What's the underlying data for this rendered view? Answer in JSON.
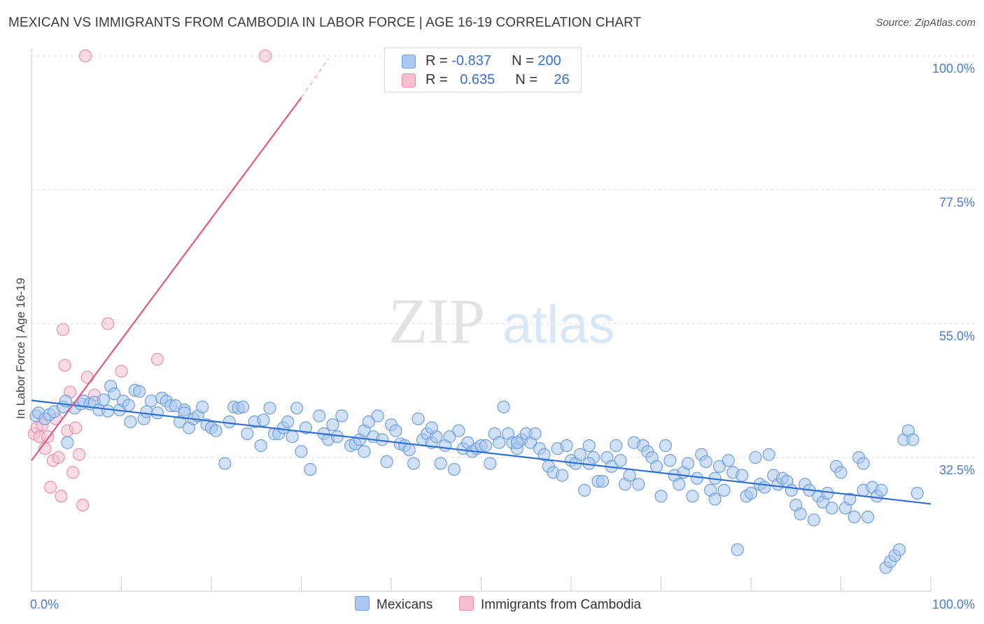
{
  "title": "MEXICAN VS IMMIGRANTS FROM CAMBODIA IN LABOR FORCE | AGE 16-19 CORRELATION CHART",
  "source": "Source: ZipAtlas.com",
  "watermark": {
    "zip": "ZIP",
    "atlas": "atlas"
  },
  "colors": {
    "blue_fill": "#a9c7ef",
    "blue_stroke": "#6f9fe0",
    "blue_line": "#2f6fd0",
    "pink_fill": "#f6bfd0",
    "pink_stroke": "#e98fae",
    "pink_line": "#e0588a",
    "tick_blue": "#4a7bd0",
    "grid": "#dddddd"
  },
  "legend": {
    "row1": {
      "r_label": "R = ",
      "r_value": "-0.837",
      "n_label": "N = ",
      "n_value": "200"
    },
    "row2": {
      "r_label": "R = ",
      "r_value": "0.635",
      "n_label": "N = ",
      "n_value": "26"
    }
  },
  "chart_data": {
    "type": "scatter",
    "xlabel": "",
    "ylabel": "In Labor Force | Age 16-19",
    "xlim": [
      0,
      100
    ],
    "ylim": [
      10,
      102
    ],
    "x_tick_labels": [
      "0.0%",
      "100.0%"
    ],
    "y_ticks": [
      32.5,
      55.0,
      77.5,
      100.0
    ],
    "y_tick_labels": [
      "32.5%",
      "55.0%",
      "77.5%",
      "100.0%"
    ],
    "grid": "horizontal dashed",
    "legend_position": "top-center",
    "series": [
      {
        "name": "Mexicans",
        "color": "#a9c7ef",
        "r": -0.837,
        "n": 200,
        "trend": {
          "x": [
            0,
            100
          ],
          "y": [
            42.1,
            24.7
          ]
        },
        "points": [
          [
            0.5,
            39.5
          ],
          [
            0.8,
            40.0
          ],
          [
            1.5,
            39.0
          ],
          [
            2.0,
            39.7
          ],
          [
            2.5,
            40.2
          ],
          [
            3.5,
            41.0
          ],
          [
            3.8,
            42.0
          ],
          [
            4.0,
            35.0
          ],
          [
            4.8,
            40.8
          ],
          [
            5.5,
            41.5
          ],
          [
            5.8,
            42.0
          ],
          [
            6.5,
            41.5
          ],
          [
            7.0,
            41.8
          ],
          [
            7.5,
            40.5
          ],
          [
            8.0,
            42.2
          ],
          [
            8.5,
            40.3
          ],
          [
            8.8,
            44.5
          ],
          [
            9.2,
            43.2
          ],
          [
            9.8,
            40.5
          ],
          [
            10.2,
            42.0
          ],
          [
            10.8,
            41.3
          ],
          [
            11.0,
            38.5
          ],
          [
            11.5,
            43.8
          ],
          [
            12.0,
            43.6
          ],
          [
            12.5,
            39.0
          ],
          [
            12.8,
            40.2
          ],
          [
            13.3,
            42.0
          ],
          [
            14.0,
            40.0
          ],
          [
            14.5,
            42.5
          ],
          [
            15.0,
            42.0
          ],
          [
            15.5,
            41.2
          ],
          [
            16.0,
            41.2
          ],
          [
            16.5,
            38.5
          ],
          [
            17.0,
            40.5
          ],
          [
            17.5,
            37.5
          ],
          [
            18.0,
            39.0
          ],
          [
            18.5,
            39.5
          ],
          [
            19.0,
            41.0
          ],
          [
            19.5,
            38.0
          ],
          [
            20.0,
            37.5
          ],
          [
            20.5,
            37.0
          ],
          [
            21.5,
            31.5
          ],
          [
            22.0,
            38.5
          ],
          [
            22.5,
            41.0
          ],
          [
            23.0,
            40.8
          ],
          [
            23.5,
            41.0
          ],
          [
            24.0,
            36.5
          ],
          [
            24.8,
            38.5
          ],
          [
            25.5,
            34.5
          ],
          [
            25.8,
            38.8
          ],
          [
            26.5,
            40.8
          ],
          [
            27.0,
            36.5
          ],
          [
            27.5,
            36.5
          ],
          [
            28.0,
            37.5
          ],
          [
            28.5,
            38.5
          ],
          [
            29.5,
            40.8
          ],
          [
            30.0,
            33.5
          ],
          [
            30.5,
            37.5
          ],
          [
            31.0,
            30.5
          ],
          [
            32.0,
            39.5
          ],
          [
            32.5,
            36.5
          ],
          [
            33.0,
            35.5
          ],
          [
            33.5,
            38.0
          ],
          [
            34.0,
            36.0
          ],
          [
            34.5,
            39.5
          ],
          [
            35.5,
            34.5
          ],
          [
            36.0,
            34.8
          ],
          [
            36.5,
            35.5
          ],
          [
            37.0,
            37.0
          ],
          [
            37.5,
            38.5
          ],
          [
            38.0,
            36.0
          ],
          [
            38.5,
            39.5
          ],
          [
            39.0,
            35.5
          ],
          [
            39.5,
            31.8
          ],
          [
            40.0,
            38.0
          ],
          [
            40.5,
            37.0
          ],
          [
            41.0,
            34.8
          ],
          [
            41.5,
            34.5
          ],
          [
            42.0,
            33.8
          ],
          [
            42.5,
            31.5
          ],
          [
            43.0,
            39.0
          ],
          [
            43.5,
            35.5
          ],
          [
            44.0,
            36.5
          ],
          [
            44.5,
            35.0
          ],
          [
            45.0,
            36.0
          ],
          [
            45.5,
            31.5
          ],
          [
            46.0,
            34.5
          ],
          [
            46.5,
            36.0
          ],
          [
            47.0,
            30.5
          ],
          [
            47.5,
            37.0
          ],
          [
            48.0,
            34.0
          ],
          [
            48.5,
            35.0
          ],
          [
            49.0,
            33.5
          ],
          [
            49.5,
            34.0
          ],
          [
            50.0,
            34.5
          ],
          [
            50.5,
            34.5
          ],
          [
            51.0,
            31.5
          ],
          [
            51.5,
            36.5
          ],
          [
            52.0,
            35.0
          ],
          [
            52.5,
            41.0
          ],
          [
            53.0,
            36.5
          ],
          [
            53.5,
            35.0
          ],
          [
            54.0,
            34.0
          ],
          [
            54.5,
            35.5
          ],
          [
            55.0,
            36.5
          ],
          [
            55.5,
            35.0
          ],
          [
            56.0,
            36.5
          ],
          [
            56.5,
            34.0
          ],
          [
            57.0,
            33.0
          ],
          [
            57.5,
            31.0
          ],
          [
            58.0,
            30.0
          ],
          [
            58.5,
            34.0
          ],
          [
            59.0,
            29.5
          ],
          [
            59.5,
            34.5
          ],
          [
            60.0,
            32.0
          ],
          [
            60.5,
            31.5
          ],
          [
            61.0,
            33.0
          ],
          [
            61.5,
            27.0
          ],
          [
            62.0,
            34.5
          ],
          [
            62.5,
            32.5
          ],
          [
            63.0,
            28.5
          ],
          [
            63.5,
            28.5
          ],
          [
            64.0,
            32.5
          ],
          [
            64.5,
            31.0
          ],
          [
            65.0,
            34.5
          ],
          [
            65.5,
            32.0
          ],
          [
            66.0,
            28.0
          ],
          [
            66.5,
            29.5
          ],
          [
            67.0,
            35.0
          ],
          [
            67.5,
            28.0
          ],
          [
            68.0,
            34.5
          ],
          [
            68.5,
            33.5
          ],
          [
            69.0,
            32.5
          ],
          [
            69.5,
            31.0
          ],
          [
            70.0,
            26.0
          ],
          [
            70.5,
            34.5
          ],
          [
            71.0,
            32.0
          ],
          [
            71.5,
            29.5
          ],
          [
            72.0,
            28.0
          ],
          [
            72.5,
            30.0
          ],
          [
            73.0,
            31.5
          ],
          [
            73.5,
            26.0
          ],
          [
            74.0,
            29.0
          ],
          [
            74.5,
            33.0
          ],
          [
            75.0,
            31.8
          ],
          [
            75.5,
            27.0
          ],
          [
            76.0,
            25.5
          ],
          [
            76.5,
            31.0
          ],
          [
            77.0,
            27.0
          ],
          [
            77.5,
            32.0
          ],
          [
            78.0,
            30.0
          ],
          [
            78.5,
            17.0
          ],
          [
            79.0,
            29.5
          ],
          [
            79.5,
            26.0
          ],
          [
            80.0,
            26.5
          ],
          [
            80.5,
            32.5
          ],
          [
            81.0,
            28.0
          ],
          [
            81.5,
            27.5
          ],
          [
            82.0,
            33.0
          ],
          [
            82.5,
            29.5
          ],
          [
            83.0,
            28.0
          ],
          [
            83.5,
            29.0
          ],
          [
            84.0,
            28.5
          ],
          [
            84.5,
            27.0
          ],
          [
            85.0,
            24.5
          ],
          [
            85.5,
            23.0
          ],
          [
            86.0,
            28.0
          ],
          [
            86.5,
            27.0
          ],
          [
            87.0,
            22.0
          ],
          [
            87.5,
            26.0
          ],
          [
            88.0,
            25.0
          ],
          [
            88.5,
            26.5
          ],
          [
            89.0,
            24.0
          ],
          [
            89.5,
            31.0
          ],
          [
            90.0,
            30.0
          ],
          [
            90.5,
            24.0
          ],
          [
            91.0,
            25.5
          ],
          [
            91.5,
            22.5
          ],
          [
            92.0,
            32.5
          ],
          [
            92.5,
            27.0
          ],
          [
            93.0,
            22.5
          ],
          [
            93.5,
            27.5
          ],
          [
            94.0,
            26.0
          ],
          [
            94.5,
            27.0
          ],
          [
            95.0,
            14.0
          ],
          [
            95.5,
            15.0
          ],
          [
            96.0,
            16.0
          ],
          [
            96.5,
            17.0
          ],
          [
            97.0,
            35.5
          ],
          [
            97.5,
            37.0
          ],
          [
            98.0,
            35.5
          ],
          [
            98.5,
            26.5
          ],
          [
            92.5,
            31.5
          ],
          [
            76.0,
            29.0
          ],
          [
            62.0,
            31.5
          ],
          [
            54.0,
            35.0
          ],
          [
            44.5,
            37.5
          ],
          [
            37.0,
            33.5
          ],
          [
            29.0,
            36.0
          ],
          [
            17.0,
            40.0
          ]
        ]
      },
      {
        "name": "Immigrants from Cambodia",
        "color": "#f6bfd0",
        "r": 0.635,
        "n": 26,
        "trend": {
          "x": [
            0,
            30.0
          ],
          "y": [
            32.0,
            93.0
          ]
        },
        "trend_ext": {
          "x": [
            30.0,
            33.0
          ],
          "y": [
            93.0,
            99.5
          ]
        },
        "points": [
          [
            0.3,
            36.5
          ],
          [
            0.6,
            37.5
          ],
          [
            0.9,
            36.0
          ],
          [
            1.2,
            38.0
          ],
          [
            1.5,
            34.0
          ],
          [
            1.8,
            36.0
          ],
          [
            2.1,
            27.5
          ],
          [
            2.4,
            32.0
          ],
          [
            2.7,
            39.0
          ],
          [
            3.0,
            32.5
          ],
          [
            3.3,
            26.0
          ],
          [
            3.5,
            54.0
          ],
          [
            3.7,
            48.0
          ],
          [
            4.0,
            37.0
          ],
          [
            4.3,
            43.5
          ],
          [
            4.6,
            30.0
          ],
          [
            4.9,
            37.5
          ],
          [
            5.3,
            33.0
          ],
          [
            5.7,
            24.5
          ],
          [
            6.2,
            46.0
          ],
          [
            7.0,
            43.0
          ],
          [
            8.5,
            55.0
          ],
          [
            10.0,
            47.0
          ],
          [
            14.0,
            49.0
          ],
          [
            6.0,
            100.0
          ],
          [
            26.0,
            100.0
          ]
        ]
      }
    ]
  }
}
